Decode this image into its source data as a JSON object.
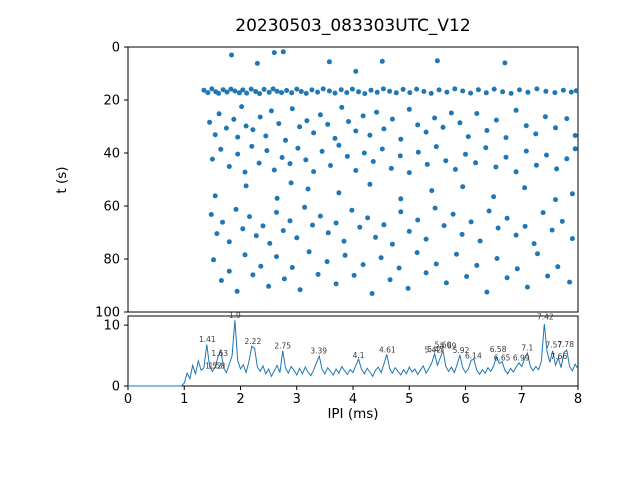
{
  "figure": {
    "title": "20230503_083303UTC_V12",
    "background": "#ffffff",
    "accent_color": "#1f77b4",
    "axis_color": "#000000",
    "annotation_color": "#3a3a3a"
  },
  "chart_data": [
    {
      "type": "scatter",
      "title": "20230503_083303UTC_V12",
      "xlabel": "",
      "ylabel": "t (s)",
      "xlim": [
        0,
        8
      ],
      "ylim": [
        100,
        0
      ],
      "y_inverted": true,
      "yticks": [
        0,
        20,
        40,
        60,
        80,
        100
      ],
      "grid": false,
      "marker_color": "#1f77b4",
      "points": [
        [
          1.84,
          3.0
        ],
        [
          2.3,
          6.2
        ],
        [
          2.6,
          2.1
        ],
        [
          2.76,
          1.8
        ],
        [
          3.58,
          5.6
        ],
        [
          4.05,
          9.2
        ],
        [
          4.52,
          5.4
        ],
        [
          5.5,
          5.2
        ],
        [
          6.7,
          6.0
        ],
        [
          1.35,
          16.3
        ],
        [
          1.42,
          17.2
        ],
        [
          1.49,
          15.8
        ],
        [
          1.56,
          16.9
        ],
        [
          1.61,
          17.5
        ],
        [
          1.69,
          16.1
        ],
        [
          1.76,
          17.0
        ],
        [
          1.83,
          15.9
        ],
        [
          1.9,
          16.6
        ],
        [
          1.98,
          17.3
        ],
        [
          2.04,
          16.2
        ],
        [
          2.11,
          17.4
        ],
        [
          2.19,
          15.9
        ],
        [
          2.27,
          16.8
        ],
        [
          2.34,
          17.6
        ],
        [
          2.42,
          16.0
        ],
        [
          2.51,
          17.1
        ],
        [
          2.58,
          15.8
        ],
        [
          2.65,
          16.7
        ],
        [
          2.73,
          17.2
        ],
        [
          2.82,
          16.4
        ],
        [
          2.91,
          17.3
        ],
        [
          3.0,
          15.9
        ],
        [
          3.08,
          16.8
        ],
        [
          3.17,
          17.5
        ],
        [
          3.27,
          16.2
        ],
        [
          3.37,
          17.0
        ],
        [
          3.47,
          15.8
        ],
        [
          3.58,
          16.6
        ],
        [
          3.68,
          17.4
        ],
        [
          3.79,
          16.1
        ],
        [
          3.89,
          17.2
        ],
        [
          3.99,
          15.9
        ],
        [
          4.1,
          16.9
        ],
        [
          4.21,
          17.6
        ],
        [
          4.32,
          16.3
        ],
        [
          4.43,
          17.1
        ],
        [
          4.54,
          15.8
        ],
        [
          4.65,
          16.7
        ],
        [
          4.77,
          17.3
        ],
        [
          4.89,
          16.0
        ],
        [
          5.01,
          17.2
        ],
        [
          5.13,
          15.9
        ],
        [
          5.26,
          16.8
        ],
        [
          5.39,
          17.5
        ],
        [
          5.53,
          16.2
        ],
        [
          5.67,
          17.0
        ],
        [
          5.81,
          15.8
        ],
        [
          5.95,
          16.6
        ],
        [
          6.09,
          17.4
        ],
        [
          6.23,
          16.1
        ],
        [
          6.37,
          17.3
        ],
        [
          6.51,
          15.9
        ],
        [
          6.66,
          16.9
        ],
        [
          6.81,
          17.5
        ],
        [
          6.96,
          16.2
        ],
        [
          7.11,
          17.1
        ],
        [
          7.27,
          15.8
        ],
        [
          7.43,
          16.7
        ],
        [
          7.59,
          17.2
        ],
        [
          7.74,
          16.3
        ],
        [
          7.88,
          17.0
        ],
        [
          7.97,
          16.5
        ],
        [
          1.45,
          28.4
        ],
        [
          1.55,
          33.1
        ],
        [
          1.62,
          25.2
        ],
        [
          1.75,
          30.6
        ],
        [
          1.88,
          27.3
        ],
        [
          1.95,
          34.0
        ],
        [
          2.02,
          22.5
        ],
        [
          2.1,
          29.8
        ],
        [
          2.22,
          31.2
        ],
        [
          2.35,
          26.4
        ],
        [
          2.45,
          33.6
        ],
        [
          2.55,
          24.1
        ],
        [
          2.68,
          28.9
        ],
        [
          2.8,
          35.2
        ],
        [
          2.92,
          23.3
        ],
        [
          3.05,
          30.1
        ],
        [
          3.18,
          27.8
        ],
        [
          3.3,
          32.4
        ],
        [
          3.42,
          25.6
        ],
        [
          3.55,
          29.2
        ],
        [
          3.68,
          34.5
        ],
        [
          3.8,
          22.8
        ],
        [
          3.92,
          28.1
        ],
        [
          4.05,
          31.7
        ],
        [
          4.18,
          26.0
        ],
        [
          4.3,
          33.3
        ],
        [
          4.42,
          24.6
        ],
        [
          4.55,
          30.9
        ],
        [
          4.7,
          27.2
        ],
        [
          4.85,
          34.8
        ],
        [
          5.0,
          23.5
        ],
        [
          5.15,
          29.4
        ],
        [
          5.3,
          32.1
        ],
        [
          5.45,
          26.8
        ],
        [
          5.6,
          30.3
        ],
        [
          5.75,
          24.9
        ],
        [
          5.9,
          28.6
        ],
        [
          6.05,
          33.8
        ],
        [
          6.2,
          25.1
        ],
        [
          6.38,
          31.5
        ],
        [
          6.55,
          27.6
        ],
        [
          6.72,
          34.2
        ],
        [
          6.9,
          23.9
        ],
        [
          7.08,
          29.7
        ],
        [
          7.25,
          32.8
        ],
        [
          7.42,
          26.3
        ],
        [
          7.6,
          30.5
        ],
        [
          7.8,
          27.0
        ],
        [
          7.95,
          33.4
        ],
        [
          1.5,
          42.3
        ],
        [
          1.65,
          38.6
        ],
        [
          1.8,
          45.1
        ],
        [
          1.95,
          40.4
        ],
        [
          2.08,
          47.2
        ],
        [
          2.2,
          37.5
        ],
        [
          2.33,
          43.8
        ],
        [
          2.47,
          39.1
        ],
        [
          2.6,
          46.4
        ],
        [
          2.74,
          41.7
        ],
        [
          2.88,
          44.0
        ],
        [
          3.02,
          38.2
        ],
        [
          3.16,
          42.6
        ],
        [
          3.3,
          47.0
        ],
        [
          3.45,
          39.4
        ],
        [
          3.6,
          44.7
        ],
        [
          3.75,
          37.1
        ],
        [
          3.9,
          41.3
        ],
        [
          4.05,
          46.6
        ],
        [
          4.2,
          40.0
        ],
        [
          4.36,
          43.2
        ],
        [
          4.52,
          38.5
        ],
        [
          4.68,
          45.8
        ],
        [
          4.84,
          41.1
        ],
        [
          5.0,
          47.4
        ],
        [
          5.16,
          39.7
        ],
        [
          5.32,
          44.3
        ],
        [
          5.48,
          37.6
        ],
        [
          5.65,
          42.9
        ],
        [
          5.82,
          46.2
        ],
        [
          6.0,
          40.5
        ],
        [
          6.18,
          43.7
        ],
        [
          6.36,
          38.0
        ],
        [
          6.54,
          45.3
        ],
        [
          6.72,
          41.6
        ],
        [
          6.9,
          47.1
        ],
        [
          7.08,
          39.3
        ],
        [
          7.26,
          44.6
        ],
        [
          7.44,
          40.8
        ],
        [
          7.62,
          46.0
        ],
        [
          7.8,
          42.2
        ],
        [
          7.95,
          38.4
        ],
        [
          1.55,
          56.2
        ],
        [
          2.1,
          52.4
        ],
        [
          2.65,
          57.1
        ],
        [
          2.9,
          51.3
        ],
        [
          3.2,
          53.6
        ],
        [
          3.75,
          55.0
        ],
        [
          4.3,
          51.8
        ],
        [
          4.85,
          57.3
        ],
        [
          5.4,
          54.2
        ],
        [
          5.95,
          52.7
        ],
        [
          6.5,
          56.5
        ],
        [
          7.05,
          53.1
        ],
        [
          7.6,
          57.6
        ],
        [
          7.9,
          55.4
        ],
        [
          1.48,
          63.2
        ],
        [
          1.58,
          70.4
        ],
        [
          1.68,
          66.1
        ],
        [
          1.8,
          73.5
        ],
        [
          1.92,
          61.3
        ],
        [
          2.04,
          68.6
        ],
        [
          2.16,
          64.0
        ],
        [
          2.28,
          71.2
        ],
        [
          2.4,
          67.5
        ],
        [
          2.52,
          74.1
        ],
        [
          2.64,
          62.4
        ],
        [
          2.76,
          69.3
        ],
        [
          2.88,
          65.6
        ],
        [
          3.0,
          72.0
        ],
        [
          3.14,
          60.5
        ],
        [
          3.28,
          67.2
        ],
        [
          3.42,
          63.8
        ],
        [
          3.56,
          70.1
        ],
        [
          3.7,
          66.4
        ],
        [
          3.84,
          73.3
        ],
        [
          3.98,
          61.6
        ],
        [
          4.12,
          68.0
        ],
        [
          4.26,
          64.5
        ],
        [
          4.4,
          71.8
        ],
        [
          4.55,
          67.1
        ],
        [
          4.7,
          74.4
        ],
        [
          4.85,
          62.2
        ],
        [
          5.0,
          69.6
        ],
        [
          5.15,
          65.3
        ],
        [
          5.3,
          72.5
        ],
        [
          5.46,
          60.8
        ],
        [
          5.62,
          67.4
        ],
        [
          5.78,
          63.1
        ],
        [
          5.94,
          70.7
        ],
        [
          6.1,
          66.0
        ],
        [
          6.26,
          73.2
        ],
        [
          6.42,
          61.9
        ],
        [
          6.58,
          68.3
        ],
        [
          6.74,
          64.6
        ],
        [
          6.9,
          71.0
        ],
        [
          7.06,
          67.7
        ],
        [
          7.22,
          74.2
        ],
        [
          7.38,
          62.5
        ],
        [
          7.54,
          69.1
        ],
        [
          7.72,
          65.8
        ],
        [
          7.9,
          72.3
        ],
        [
          1.52,
          80.3
        ],
        [
          1.66,
          88.1
        ],
        [
          1.8,
          84.6
        ],
        [
          1.94,
          92.2
        ],
        [
          2.08,
          78.4
        ],
        [
          2.22,
          86.0
        ],
        [
          2.36,
          82.7
        ],
        [
          2.5,
          90.3
        ],
        [
          2.64,
          79.1
        ],
        [
          2.78,
          87.5
        ],
        [
          2.92,
          83.2
        ],
        [
          3.06,
          91.6
        ],
        [
          3.22,
          77.3
        ],
        [
          3.38,
          85.8
        ],
        [
          3.54,
          81.0
        ],
        [
          3.7,
          89.4
        ],
        [
          3.86,
          78.6
        ],
        [
          4.02,
          86.2
        ],
        [
          4.18,
          82.1
        ],
        [
          4.34,
          93.0
        ],
        [
          4.5,
          79.5
        ],
        [
          4.66,
          87.8
        ],
        [
          4.82,
          83.4
        ],
        [
          4.98,
          91.1
        ],
        [
          5.14,
          77.6
        ],
        [
          5.3,
          85.2
        ],
        [
          5.48,
          81.9
        ],
        [
          5.66,
          89.0
        ],
        [
          5.84,
          78.2
        ],
        [
          6.02,
          86.6
        ],
        [
          6.2,
          82.4
        ],
        [
          6.38,
          92.5
        ],
        [
          6.56,
          79.8
        ],
        [
          6.74,
          87.1
        ],
        [
          6.92,
          83.7
        ],
        [
          7.1,
          90.6
        ],
        [
          7.28,
          78.0
        ],
        [
          7.46,
          86.4
        ],
        [
          7.64,
          82.9
        ],
        [
          7.85,
          88.7
        ]
      ]
    },
    {
      "type": "line",
      "xlabel": "IPI (ms)",
      "ylabel": "",
      "xlim": [
        0,
        8
      ],
      "ylim": [
        0,
        11.5
      ],
      "xticks": [
        0,
        1,
        2,
        3,
        4,
        5,
        6,
        7,
        8
      ],
      "yticks": [
        0,
        10
      ],
      "grid": false,
      "line_color": "#1f77b4",
      "x_start": 0,
      "x_step": 0.05,
      "values": [
        0,
        0,
        0,
        0,
        0,
        0,
        0,
        0,
        0,
        0,
        0,
        0,
        0,
        0,
        0,
        0,
        0,
        0,
        0,
        0,
        0.5,
        2.1,
        1.2,
        3.4,
        2.0,
        4.1,
        2.6,
        3.0,
        6.8,
        3.2,
        2.4,
        3.1,
        4.8,
        5.9,
        3.0,
        2.2,
        3.6,
        5.0,
        10.8,
        4.2,
        2.8,
        3.5,
        2.2,
        4.0,
        6.5,
        6.2,
        3.1,
        2.4,
        3.3,
        2.0,
        2.8,
        1.6,
        2.5,
        3.4,
        2.2,
        5.8,
        3.0,
        2.1,
        3.2,
        2.6,
        1.8,
        2.9,
        2.0,
        3.1,
        2.3,
        1.7,
        2.6,
        3.8,
        4.9,
        2.7,
        2.0,
        3.0,
        2.4,
        1.8,
        2.8,
        2.1,
        3.2,
        2.5,
        1.9,
        2.7,
        2.2,
        3.4,
        4.4,
        2.8,
        2.0,
        2.9,
        2.3,
        1.6,
        2.6,
        3.1,
        2.2,
        3.6,
        5.2,
        2.9,
        2.1,
        3.0,
        2.4,
        1.8,
        2.7,
        2.0,
        3.1,
        2.3,
        2.8,
        1.9,
        2.6,
        3.3,
        2.1,
        2.9,
        3.8,
        5.3,
        3.4,
        4.6,
        5.9,
        3.2,
        2.4,
        3.1,
        2.2,
        3.5,
        5.1,
        3.0,
        2.2,
        2.8,
        4.2,
        4.4,
        2.6,
        1.9,
        2.7,
        2.1,
        3.0,
        2.4,
        3.3,
        4.8,
        3.7,
        4.0,
        2.6,
        2.0,
        2.9,
        2.3,
        3.1,
        3.8,
        3.2,
        4.5,
        5.4,
        3.3,
        2.5,
        3.2,
        2.7,
        4.1,
        10.2,
        5.6,
        3.9,
        5.8,
        3.4,
        4.6,
        3.0,
        5.5,
        5.9,
        3.2,
        2.5,
        3.6,
        2.8
      ],
      "annotations": [
        {
          "x": 1.41,
          "y": 7.2,
          "label": "1.41"
        },
        {
          "x": 1.52,
          "y": 2.9,
          "label": "1.52"
        },
        {
          "x": 1.58,
          "y": 2.9,
          "label": "1.58"
        },
        {
          "x": 1.63,
          "y": 4.9,
          "label": "1.63"
        },
        {
          "x": 1.9,
          "y": 11.2,
          "label": "1.9"
        },
        {
          "x": 2.22,
          "y": 6.9,
          "label": "2.22"
        },
        {
          "x": 2.75,
          "y": 6.2,
          "label": "2.75"
        },
        {
          "x": 3.39,
          "y": 5.3,
          "label": "3.39"
        },
        {
          "x": 4.1,
          "y": 4.6,
          "label": "4.1"
        },
        {
          "x": 4.61,
          "y": 5.5,
          "label": "4.61"
        },
        {
          "x": 5.42,
          "y": 5.5,
          "label": "5.42"
        },
        {
          "x": 5.47,
          "y": 5.6,
          "label": "5.47"
        },
        {
          "x": 5.6,
          "y": 6.3,
          "label": "5.60"
        },
        {
          "x": 5.69,
          "y": 6.2,
          "label": "5.69"
        },
        {
          "x": 5.92,
          "y": 5.4,
          "label": "5.92"
        },
        {
          "x": 6.14,
          "y": 4.5,
          "label": "6.14"
        },
        {
          "x": 6.58,
          "y": 5.6,
          "label": "6.58"
        },
        {
          "x": 6.65,
          "y": 4.2,
          "label": "6.65"
        },
        {
          "x": 6.99,
          "y": 4.2,
          "label": "6.99"
        },
        {
          "x": 7.1,
          "y": 5.8,
          "label": "7.1"
        },
        {
          "x": 7.42,
          "y": 10.9,
          "label": "7.42"
        },
        {
          "x": 7.57,
          "y": 6.3,
          "label": "7.57"
        },
        {
          "x": 7.66,
          "y": 4.4,
          "label": "7.66"
        },
        {
          "x": 7.78,
          "y": 6.4,
          "label": "7.78"
        }
      ]
    }
  ]
}
